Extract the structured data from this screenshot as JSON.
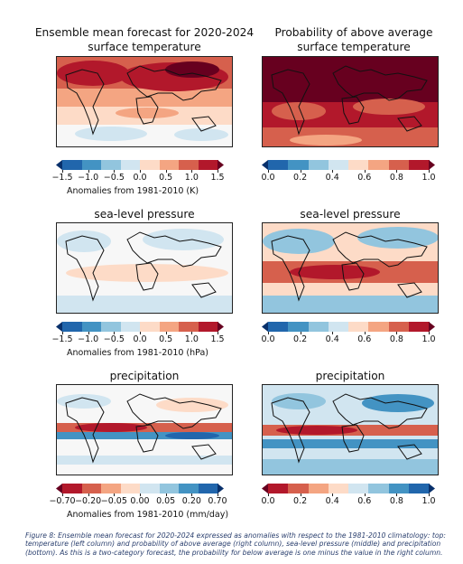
{
  "headers": {
    "left": [
      "Ensemble mean forecast for 2020-2024",
      "surface temperature"
    ],
    "right": [
      "Probability of above average",
      "surface temperature"
    ]
  },
  "panels": {
    "row1": {
      "left_title": "",
      "right_title": ""
    },
    "row2": {
      "left_title": "sea-level pressure",
      "right_title": "sea-level pressure"
    },
    "row3": {
      "left_title": "precipitation",
      "right_title": "precipitation"
    }
  },
  "colorbars": {
    "temp": {
      "ticks": [
        "−1.5",
        "−1.0",
        "−0.5",
        "0.0",
        "0.5",
        "1.0",
        "1.5"
      ],
      "label": "Anomalies from 1981-2010 (K)",
      "colors": [
        "#08306b",
        "#2166ac",
        "#4393c3",
        "#92c5de",
        "#d1e5f0",
        "#fddbc7",
        "#f4a582",
        "#d6604d",
        "#b2182b",
        "#67001f"
      ]
    },
    "prob": {
      "ticks": [
        "0.0",
        "0.2",
        "0.4",
        "0.6",
        "0.8",
        "1.0"
      ],
      "label": "",
      "colors": [
        "#08306b",
        "#2166ac",
        "#4393c3",
        "#92c5de",
        "#d1e5f0",
        "#fddbc7",
        "#f4a582",
        "#d6604d",
        "#b2182b",
        "#67001f"
      ]
    },
    "slp": {
      "ticks": [
        "−1.5",
        "−1.0",
        "−0.5",
        "0.0",
        "0.5",
        "1.0",
        "1.5"
      ],
      "label": "Anomalies from 1981-2010 (hPa)",
      "colors": [
        "#08306b",
        "#2166ac",
        "#4393c3",
        "#92c5de",
        "#d1e5f0",
        "#fddbc7",
        "#f4a582",
        "#d6604d",
        "#b2182b",
        "#67001f"
      ]
    },
    "prob2": {
      "ticks": [
        "0.0",
        "0.2",
        "0.4",
        "0.6",
        "0.8",
        "1.0"
      ],
      "label": "",
      "colors": [
        "#08306b",
        "#2166ac",
        "#4393c3",
        "#92c5de",
        "#d1e5f0",
        "#fddbc7",
        "#f4a582",
        "#d6604d",
        "#b2182b",
        "#67001f"
      ]
    },
    "precip": {
      "ticks": [
        "−0.70",
        "−0.20",
        "−0.05",
        "0.00",
        "0.05",
        "0.20",
        "0.70"
      ],
      "label": "Anomalies from 1981-2010 (mm/day)",
      "colors": [
        "#67001f",
        "#b2182b",
        "#d6604d",
        "#f4a582",
        "#fddbc7",
        "#d1e5f0",
        "#92c5de",
        "#4393c3",
        "#2166ac",
        "#08306b"
      ]
    },
    "prob3": {
      "ticks": [
        "0.0",
        "0.2",
        "0.4",
        "0.6",
        "0.8",
        "1.0"
      ],
      "label": "",
      "colors": [
        "#67001f",
        "#b2182b",
        "#d6604d",
        "#f4a582",
        "#fddbc7",
        "#d1e5f0",
        "#92c5de",
        "#4393c3",
        "#2166ac",
        "#08306b"
      ]
    }
  },
  "caption": "Figure 8: Ensemble mean forecast  for 2020-2024 expressed as anomalies with respect to the 1981-2010 climatology: top: temperature (left column) and probability of above average (right column), sea-level pressure (middle) and precipitation (bottom). As this is a two-category forecast, the probability for below average is one minus the value in the right column."
}
